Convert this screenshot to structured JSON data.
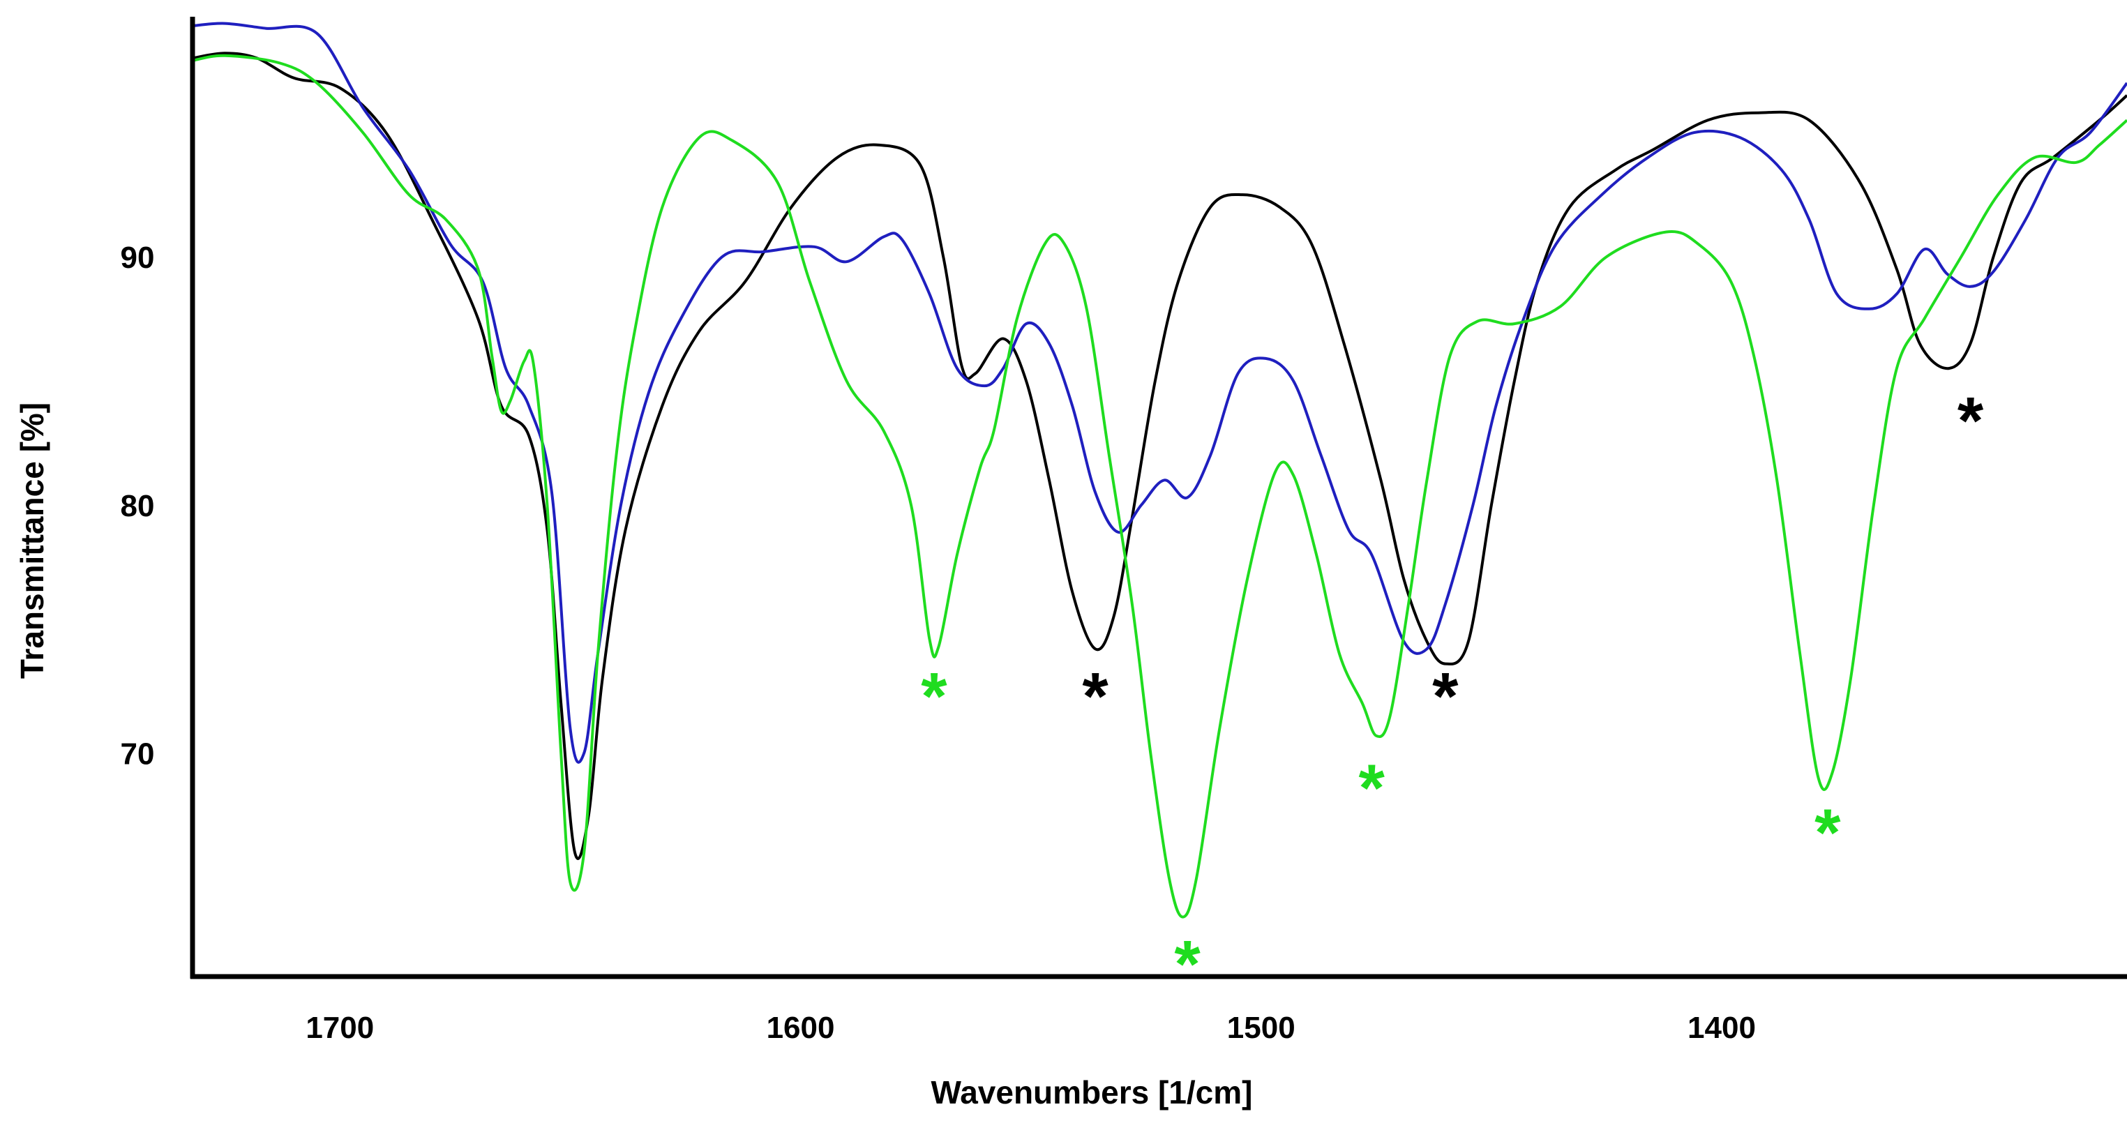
{
  "chart_data": {
    "type": "line",
    "title": "",
    "xlabel": "Wavenumbers [1/cm]",
    "ylabel": "Transmittance [%]",
    "xlim": [
      1732,
      1312
    ],
    "ylim": [
      61,
      99.5
    ],
    "x_ticks": [
      {
        "value": 1700,
        "label": "1700"
      },
      {
        "value": 1600,
        "label": "1600"
      },
      {
        "value": 1500,
        "label": "1500"
      },
      {
        "value": 1400,
        "label": "1400"
      }
    ],
    "y_ticks": [
      {
        "value": 90,
        "label": "90"
      },
      {
        "value": 80,
        "label": "80"
      },
      {
        "value": 70,
        "label": "70"
      }
    ],
    "grid": false,
    "series": [
      {
        "name": "black",
        "color": "#000000",
        "points": [
          [
            1732,
            98
          ],
          [
            1725,
            98.2
          ],
          [
            1718,
            98
          ],
          [
            1710,
            97.2
          ],
          [
            1700,
            96.8
          ],
          [
            1690,
            95
          ],
          [
            1680,
            91.5
          ],
          [
            1670,
            87.5
          ],
          [
            1665,
            84
          ],
          [
            1659,
            82.8
          ],
          [
            1655,
            79
          ],
          [
            1652,
            72
          ],
          [
            1649,
            66
          ],
          [
            1646,
            67.5
          ],
          [
            1643,
            73
          ],
          [
            1638,
            79
          ],
          [
            1630,
            84
          ],
          [
            1622,
            87
          ],
          [
            1612,
            89
          ],
          [
            1602,
            92
          ],
          [
            1592,
            94
          ],
          [
            1583,
            94.5
          ],
          [
            1574,
            93.7
          ],
          [
            1569,
            90
          ],
          [
            1565,
            85.6
          ],
          [
            1562,
            85.3
          ],
          [
            1556,
            86.7
          ],
          [
            1551,
            85
          ],
          [
            1546,
            81
          ],
          [
            1541,
            76.5
          ],
          [
            1536,
            74.2
          ],
          [
            1532,
            75.5
          ],
          [
            1528,
            79.5
          ],
          [
            1523,
            85
          ],
          [
            1518,
            89
          ],
          [
            1511,
            92
          ],
          [
            1504,
            92.5
          ],
          [
            1496,
            92
          ],
          [
            1489,
            90.5
          ],
          [
            1482,
            86.5
          ],
          [
            1474,
            81
          ],
          [
            1469,
            77
          ],
          [
            1464,
            74.5
          ],
          [
            1460,
            73.6
          ],
          [
            1455,
            74.5
          ],
          [
            1450,
            80
          ],
          [
            1445,
            85
          ],
          [
            1440,
            89
          ],
          [
            1433,
            92
          ],
          [
            1423,
            93.5
          ],
          [
            1415,
            94.3
          ],
          [
            1403,
            95.5
          ],
          [
            1392,
            95.8
          ],
          [
            1381,
            95.5
          ],
          [
            1370,
            93
          ],
          [
            1362,
            89.5
          ],
          [
            1357,
            86.5
          ],
          [
            1351,
            85.5
          ],
          [
            1346,
            86.5
          ],
          [
            1341,
            90
          ],
          [
            1335,
            93
          ],
          [
            1328,
            94
          ],
          [
            1318,
            95.5
          ],
          [
            1312,
            96.5
          ]
        ]
      },
      {
        "name": "blue",
        "color": "#1f1fbf",
        "points": [
          [
            1732,
            99.3
          ],
          [
            1725,
            99.4
          ],
          [
            1716,
            99.2
          ],
          [
            1705,
            99
          ],
          [
            1695,
            96
          ],
          [
            1685,
            93.5
          ],
          [
            1676,
            90.5
          ],
          [
            1669,
            89
          ],
          [
            1664,
            85.5
          ],
          [
            1659,
            84
          ],
          [
            1654,
            80.5
          ],
          [
            1650,
            71
          ],
          [
            1647,
            70
          ],
          [
            1644,
            74
          ],
          [
            1639,
            80
          ],
          [
            1633,
            84.5
          ],
          [
            1626,
            87.5
          ],
          [
            1617,
            90
          ],
          [
            1608,
            90.2
          ],
          [
            1597,
            90.4
          ],
          [
            1590,
            89.8
          ],
          [
            1582,
            90.8
          ],
          [
            1578,
            90.7
          ],
          [
            1572,
            88.5
          ],
          [
            1566,
            85.5
          ],
          [
            1560,
            84.8
          ],
          [
            1556,
            85.5
          ],
          [
            1551,
            87.3
          ],
          [
            1546,
            86.5
          ],
          [
            1541,
            84
          ],
          [
            1536,
            80.5
          ],
          [
            1531,
            78.9
          ],
          [
            1526,
            80
          ],
          [
            1521,
            81
          ],
          [
            1516,
            80.3
          ],
          [
            1511,
            82
          ],
          [
            1505,
            85.3
          ],
          [
            1499,
            85.9
          ],
          [
            1493,
            85
          ],
          [
            1487,
            82
          ],
          [
            1481,
            79
          ],
          [
            1476,
            78
          ],
          [
            1469,
            74.5
          ],
          [
            1464,
            74.2
          ],
          [
            1460,
            76
          ],
          [
            1454,
            80
          ],
          [
            1449,
            84
          ],
          [
            1443,
            87.5
          ],
          [
            1436,
            90.5
          ],
          [
            1426,
            92.5
          ],
          [
            1416,
            94
          ],
          [
            1406,
            95
          ],
          [
            1396,
            94.8
          ],
          [
            1387,
            93.5
          ],
          [
            1381,
            91.5
          ],
          [
            1375,
            88.5
          ],
          [
            1368,
            87.9
          ],
          [
            1362,
            88.5
          ],
          [
            1356,
            90.3
          ],
          [
            1351,
            89.3
          ],
          [
            1346,
            88.8
          ],
          [
            1341,
            89.4
          ],
          [
            1334,
            91.5
          ],
          [
            1327,
            94
          ],
          [
            1320,
            95
          ],
          [
            1312,
            97
          ]
        ]
      },
      {
        "name": "green",
        "color": "#1fdc1f",
        "points": [
          [
            1732,
            97.9
          ],
          [
            1725,
            98.1
          ],
          [
            1713,
            97.8
          ],
          [
            1705,
            97
          ],
          [
            1695,
            95
          ],
          [
            1685,
            92.5
          ],
          [
            1677,
            91.5
          ],
          [
            1670,
            89.5
          ],
          [
            1667,
            86
          ],
          [
            1665,
            83.8
          ],
          [
            1663,
            84.2
          ],
          [
            1660,
            85.8
          ],
          [
            1658,
            85.7
          ],
          [
            1655,
            80
          ],
          [
            1652,
            70
          ],
          [
            1650,
            64.8
          ],
          [
            1647,
            66
          ],
          [
            1644,
            74
          ],
          [
            1640,
            82
          ],
          [
            1636,
            87
          ],
          [
            1630,
            92
          ],
          [
            1622,
            94.8
          ],
          [
            1615,
            94.7
          ],
          [
            1605,
            93
          ],
          [
            1598,
            89
          ],
          [
            1590,
            85
          ],
          [
            1582,
            83
          ],
          [
            1576,
            80
          ],
          [
            1572,
            74.6
          ],
          [
            1570,
            74.3
          ],
          [
            1566,
            78
          ],
          [
            1561,
            81.5
          ],
          [
            1558,
            83
          ],
          [
            1553,
            87.5
          ],
          [
            1547,
            90.5
          ],
          [
            1543,
            90.6
          ],
          [
            1538,
            88
          ],
          [
            1533,
            82
          ],
          [
            1528,
            76
          ],
          [
            1524,
            70
          ],
          [
            1520,
            65
          ],
          [
            1517,
            63.4
          ],
          [
            1514,
            65
          ],
          [
            1509,
            71
          ],
          [
            1503,
            77
          ],
          [
            1497,
            81.3
          ],
          [
            1493,
            81.2
          ],
          [
            1488,
            78
          ],
          [
            1483,
            74
          ],
          [
            1478,
            72
          ],
          [
            1475,
            70.7
          ],
          [
            1472,
            71.5
          ],
          [
            1468,
            76
          ],
          [
            1464,
            81
          ],
          [
            1459,
            86
          ],
          [
            1453,
            87.4
          ],
          [
            1445,
            87.3
          ],
          [
            1435,
            88
          ],
          [
            1425,
            90
          ],
          [
            1412,
            91
          ],
          [
            1405,
            90.5
          ],
          [
            1398,
            89
          ],
          [
            1393,
            86
          ],
          [
            1388,
            81
          ],
          [
            1383,
            74
          ],
          [
            1379,
            69
          ],
          [
            1376,
            69.2
          ],
          [
            1372,
            73
          ],
          [
            1367,
            80
          ],
          [
            1362,
            85.5
          ],
          [
            1356,
            87.5
          ],
          [
            1348,
            90
          ],
          [
            1340,
            92.5
          ],
          [
            1332,
            94
          ],
          [
            1323,
            93.8
          ],
          [
            1318,
            94.5
          ],
          [
            1312,
            95.5
          ]
        ]
      }
    ],
    "annotations": [
      {
        "text": "*",
        "color": "#1fdc1f",
        "x": 1571,
        "y": 72.5
      },
      {
        "text": "*",
        "color": "#000000",
        "x": 1536,
        "y": 72.5
      },
      {
        "text": "*",
        "color": "#1fdc1f",
        "x": 1516,
        "y": 61.7
      },
      {
        "text": "*",
        "color": "#1fdc1f",
        "x": 1476,
        "y": 68.8
      },
      {
        "text": "*",
        "color": "#000000",
        "x": 1460,
        "y": 72.5
      },
      {
        "text": "*",
        "color": "#1fdc1f",
        "x": 1377,
        "y": 67
      },
      {
        "text": "*",
        "color": "#000000",
        "x": 1346,
        "y": 83.6
      }
    ]
  }
}
